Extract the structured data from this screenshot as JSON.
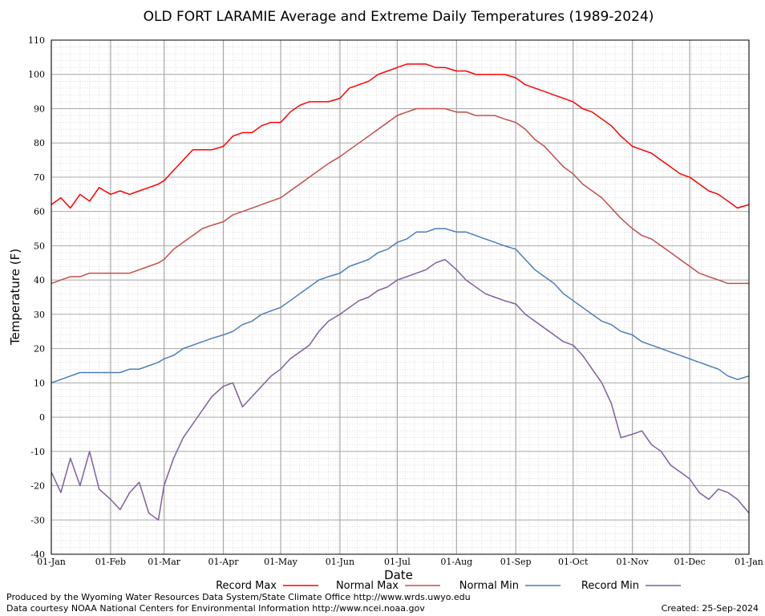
{
  "chart_data": {
    "type": "line",
    "title": "OLD FORT LARAMIE Average and Extreme Daily Temperatures (1989-2024)",
    "xlabel": "Date",
    "ylabel": "Temperature (F)",
    "ylim": [
      -40,
      110
    ],
    "yticks": [
      "110",
      "100",
      "90",
      "80",
      "70",
      "60",
      "50",
      "40",
      "30",
      "20",
      "10",
      "0",
      "-10",
      "-20",
      "-30",
      "-40"
    ],
    "xticks": [
      "01-Jan",
      "01-Feb",
      "01-Mar",
      "01-Apr",
      "01-May",
      "01-Jun",
      "01-Jul",
      "01-Aug",
      "01-Sep",
      "01-Oct",
      "01-Nov",
      "01-Dec",
      "01-Jan"
    ],
    "x_days": [
      0,
      31,
      59,
      90,
      120,
      151,
      181,
      212,
      243,
      273,
      304,
      334,
      365
    ],
    "grid": true,
    "legend_position": "bottom",
    "series": [
      {
        "name": "Record Max",
        "color": "#ff0000",
        "points": [
          [
            0,
            62
          ],
          [
            5,
            64
          ],
          [
            10,
            61
          ],
          [
            15,
            65
          ],
          [
            20,
            63
          ],
          [
            25,
            67
          ],
          [
            31,
            65
          ],
          [
            36,
            66
          ],
          [
            41,
            65
          ],
          [
            46,
            66
          ],
          [
            51,
            67
          ],
          [
            56,
            68
          ],
          [
            59,
            69
          ],
          [
            64,
            72
          ],
          [
            69,
            75
          ],
          [
            74,
            78
          ],
          [
            79,
            78
          ],
          [
            84,
            78
          ],
          [
            90,
            79
          ],
          [
            95,
            82
          ],
          [
            100,
            83
          ],
          [
            105,
            83
          ],
          [
            110,
            85
          ],
          [
            115,
            86
          ],
          [
            120,
            86
          ],
          [
            125,
            89
          ],
          [
            130,
            91
          ],
          [
            135,
            92
          ],
          [
            140,
            92
          ],
          [
            145,
            92
          ],
          [
            151,
            93
          ],
          [
            156,
            96
          ],
          [
            161,
            97
          ],
          [
            166,
            98
          ],
          [
            171,
            100
          ],
          [
            176,
            101
          ],
          [
            181,
            102
          ],
          [
            186,
            103
          ],
          [
            191,
            103
          ],
          [
            196,
            103
          ],
          [
            201,
            102
          ],
          [
            206,
            102
          ],
          [
            212,
            101
          ],
          [
            217,
            101
          ],
          [
            222,
            100
          ],
          [
            227,
            100
          ],
          [
            232,
            100
          ],
          [
            237,
            100
          ],
          [
            243,
            99
          ],
          [
            248,
            97
          ],
          [
            253,
            96
          ],
          [
            258,
            95
          ],
          [
            263,
            94
          ],
          [
            268,
            93
          ],
          [
            273,
            92
          ],
          [
            278,
            90
          ],
          [
            283,
            89
          ],
          [
            288,
            87
          ],
          [
            293,
            85
          ],
          [
            298,
            82
          ],
          [
            304,
            79
          ],
          [
            309,
            78
          ],
          [
            314,
            77
          ],
          [
            319,
            75
          ],
          [
            324,
            73
          ],
          [
            329,
            71
          ],
          [
            334,
            70
          ],
          [
            339,
            68
          ],
          [
            344,
            66
          ],
          [
            349,
            65
          ],
          [
            354,
            63
          ],
          [
            359,
            61
          ],
          [
            365,
            62
          ]
        ]
      },
      {
        "name": "Normal Max",
        "color": "#c0504d",
        "points": [
          [
            0,
            39
          ],
          [
            5,
            40
          ],
          [
            10,
            41
          ],
          [
            15,
            41
          ],
          [
            20,
            42
          ],
          [
            25,
            42
          ],
          [
            31,
            42
          ],
          [
            36,
            42
          ],
          [
            41,
            42
          ],
          [
            46,
            43
          ],
          [
            51,
            44
          ],
          [
            56,
            45
          ],
          [
            59,
            46
          ],
          [
            64,
            49
          ],
          [
            69,
            51
          ],
          [
            74,
            53
          ],
          [
            79,
            55
          ],
          [
            84,
            56
          ],
          [
            90,
            57
          ],
          [
            95,
            59
          ],
          [
            100,
            60
          ],
          [
            105,
            61
          ],
          [
            110,
            62
          ],
          [
            115,
            63
          ],
          [
            120,
            64
          ],
          [
            125,
            66
          ],
          [
            130,
            68
          ],
          [
            135,
            70
          ],
          [
            140,
            72
          ],
          [
            145,
            74
          ],
          [
            151,
            76
          ],
          [
            156,
            78
          ],
          [
            161,
            80
          ],
          [
            166,
            82
          ],
          [
            171,
            84
          ],
          [
            176,
            86
          ],
          [
            181,
            88
          ],
          [
            186,
            89
          ],
          [
            191,
            90
          ],
          [
            196,
            90
          ],
          [
            201,
            90
          ],
          [
            206,
            90
          ],
          [
            212,
            89
          ],
          [
            217,
            89
          ],
          [
            222,
            88
          ],
          [
            227,
            88
          ],
          [
            232,
            88
          ],
          [
            237,
            87
          ],
          [
            243,
            86
          ],
          [
            248,
            84
          ],
          [
            253,
            81
          ],
          [
            258,
            79
          ],
          [
            263,
            76
          ],
          [
            268,
            73
          ],
          [
            273,
            71
          ],
          [
            278,
            68
          ],
          [
            283,
            66
          ],
          [
            288,
            64
          ],
          [
            293,
            61
          ],
          [
            298,
            58
          ],
          [
            304,
            55
          ],
          [
            309,
            53
          ],
          [
            314,
            52
          ],
          [
            319,
            50
          ],
          [
            324,
            48
          ],
          [
            329,
            46
          ],
          [
            334,
            44
          ],
          [
            339,
            42
          ],
          [
            344,
            41
          ],
          [
            349,
            40
          ],
          [
            354,
            39
          ],
          [
            359,
            39
          ],
          [
            365,
            39
          ]
        ]
      },
      {
        "name": "Normal Min",
        "color": "#4a7ebb",
        "points": [
          [
            0,
            10
          ],
          [
            5,
            11
          ],
          [
            10,
            12
          ],
          [
            15,
            13
          ],
          [
            20,
            13
          ],
          [
            25,
            13
          ],
          [
            31,
            13
          ],
          [
            36,
            13
          ],
          [
            41,
            14
          ],
          [
            46,
            14
          ],
          [
            51,
            15
          ],
          [
            56,
            16
          ],
          [
            59,
            17
          ],
          [
            64,
            18
          ],
          [
            69,
            20
          ],
          [
            74,
            21
          ],
          [
            79,
            22
          ],
          [
            84,
            23
          ],
          [
            90,
            24
          ],
          [
            95,
            25
          ],
          [
            100,
            27
          ],
          [
            105,
            28
          ],
          [
            110,
            30
          ],
          [
            115,
            31
          ],
          [
            120,
            32
          ],
          [
            125,
            34
          ],
          [
            130,
            36
          ],
          [
            135,
            38
          ],
          [
            140,
            40
          ],
          [
            145,
            41
          ],
          [
            151,
            42
          ],
          [
            156,
            44
          ],
          [
            161,
            45
          ],
          [
            166,
            46
          ],
          [
            171,
            48
          ],
          [
            176,
            49
          ],
          [
            181,
            51
          ],
          [
            186,
            52
          ],
          [
            191,
            54
          ],
          [
            196,
            54
          ],
          [
            201,
            55
          ],
          [
            206,
            55
          ],
          [
            212,
            54
          ],
          [
            217,
            54
          ],
          [
            222,
            53
          ],
          [
            227,
            52
          ],
          [
            232,
            51
          ],
          [
            237,
            50
          ],
          [
            243,
            49
          ],
          [
            248,
            46
          ],
          [
            253,
            43
          ],
          [
            258,
            41
          ],
          [
            263,
            39
          ],
          [
            268,
            36
          ],
          [
            273,
            34
          ],
          [
            278,
            32
          ],
          [
            283,
            30
          ],
          [
            288,
            28
          ],
          [
            293,
            27
          ],
          [
            298,
            25
          ],
          [
            304,
            24
          ],
          [
            309,
            22
          ],
          [
            314,
            21
          ],
          [
            319,
            20
          ],
          [
            324,
            19
          ],
          [
            329,
            18
          ],
          [
            334,
            17
          ],
          [
            339,
            16
          ],
          [
            344,
            15
          ],
          [
            349,
            14
          ],
          [
            354,
            12
          ],
          [
            359,
            11
          ],
          [
            365,
            12
          ]
        ]
      },
      {
        "name": "Record Min",
        "color": "#7f5fa0",
        "points": [
          [
            0,
            -16
          ],
          [
            5,
            -22
          ],
          [
            10,
            -12
          ],
          [
            15,
            -20
          ],
          [
            20,
            -10
          ],
          [
            25,
            -21
          ],
          [
            31,
            -24
          ],
          [
            36,
            -27
          ],
          [
            41,
            -22
          ],
          [
            46,
            -19
          ],
          [
            51,
            -28
          ],
          [
            56,
            -30
          ],
          [
            59,
            -20
          ],
          [
            64,
            -12
          ],
          [
            69,
            -6
          ],
          [
            74,
            -2
          ],
          [
            79,
            2
          ],
          [
            84,
            6
          ],
          [
            90,
            9
          ],
          [
            95,
            10
          ],
          [
            100,
            3
          ],
          [
            105,
            6
          ],
          [
            110,
            9
          ],
          [
            115,
            12
          ],
          [
            120,
            14
          ],
          [
            125,
            17
          ],
          [
            130,
            19
          ],
          [
            135,
            21
          ],
          [
            140,
            25
          ],
          [
            145,
            28
          ],
          [
            151,
            30
          ],
          [
            156,
            32
          ],
          [
            161,
            34
          ],
          [
            166,
            35
          ],
          [
            171,
            37
          ],
          [
            176,
            38
          ],
          [
            181,
            40
          ],
          [
            186,
            41
          ],
          [
            191,
            42
          ],
          [
            196,
            43
          ],
          [
            201,
            45
          ],
          [
            206,
            46
          ],
          [
            212,
            43
          ],
          [
            217,
            40
          ],
          [
            222,
            38
          ],
          [
            227,
            36
          ],
          [
            232,
            35
          ],
          [
            237,
            34
          ],
          [
            243,
            33
          ],
          [
            248,
            30
          ],
          [
            253,
            28
          ],
          [
            258,
            26
          ],
          [
            263,
            24
          ],
          [
            268,
            22
          ],
          [
            273,
            21
          ],
          [
            278,
            18
          ],
          [
            283,
            14
          ],
          [
            288,
            10
          ],
          [
            293,
            4
          ],
          [
            298,
            -6
          ],
          [
            304,
            -5
          ],
          [
            309,
            -4
          ],
          [
            314,
            -8
          ],
          [
            319,
            -10
          ],
          [
            324,
            -14
          ],
          [
            329,
            -16
          ],
          [
            334,
            -18
          ],
          [
            339,
            -22
          ],
          [
            344,
            -24
          ],
          [
            349,
            -21
          ],
          [
            354,
            -22
          ],
          [
            359,
            -24
          ],
          [
            365,
            -28
          ]
        ]
      }
    ]
  },
  "footer": {
    "produced_by": "Produced by the Wyoming Water Resources Data System/State Climate Office http://www.wrds.uwyo.edu",
    "data_courtesy": "Data courtesy NOAA National Centers for Environmental Information http://www.ncei.noaa.gov",
    "created": "Created: 25-Sep-2024"
  }
}
